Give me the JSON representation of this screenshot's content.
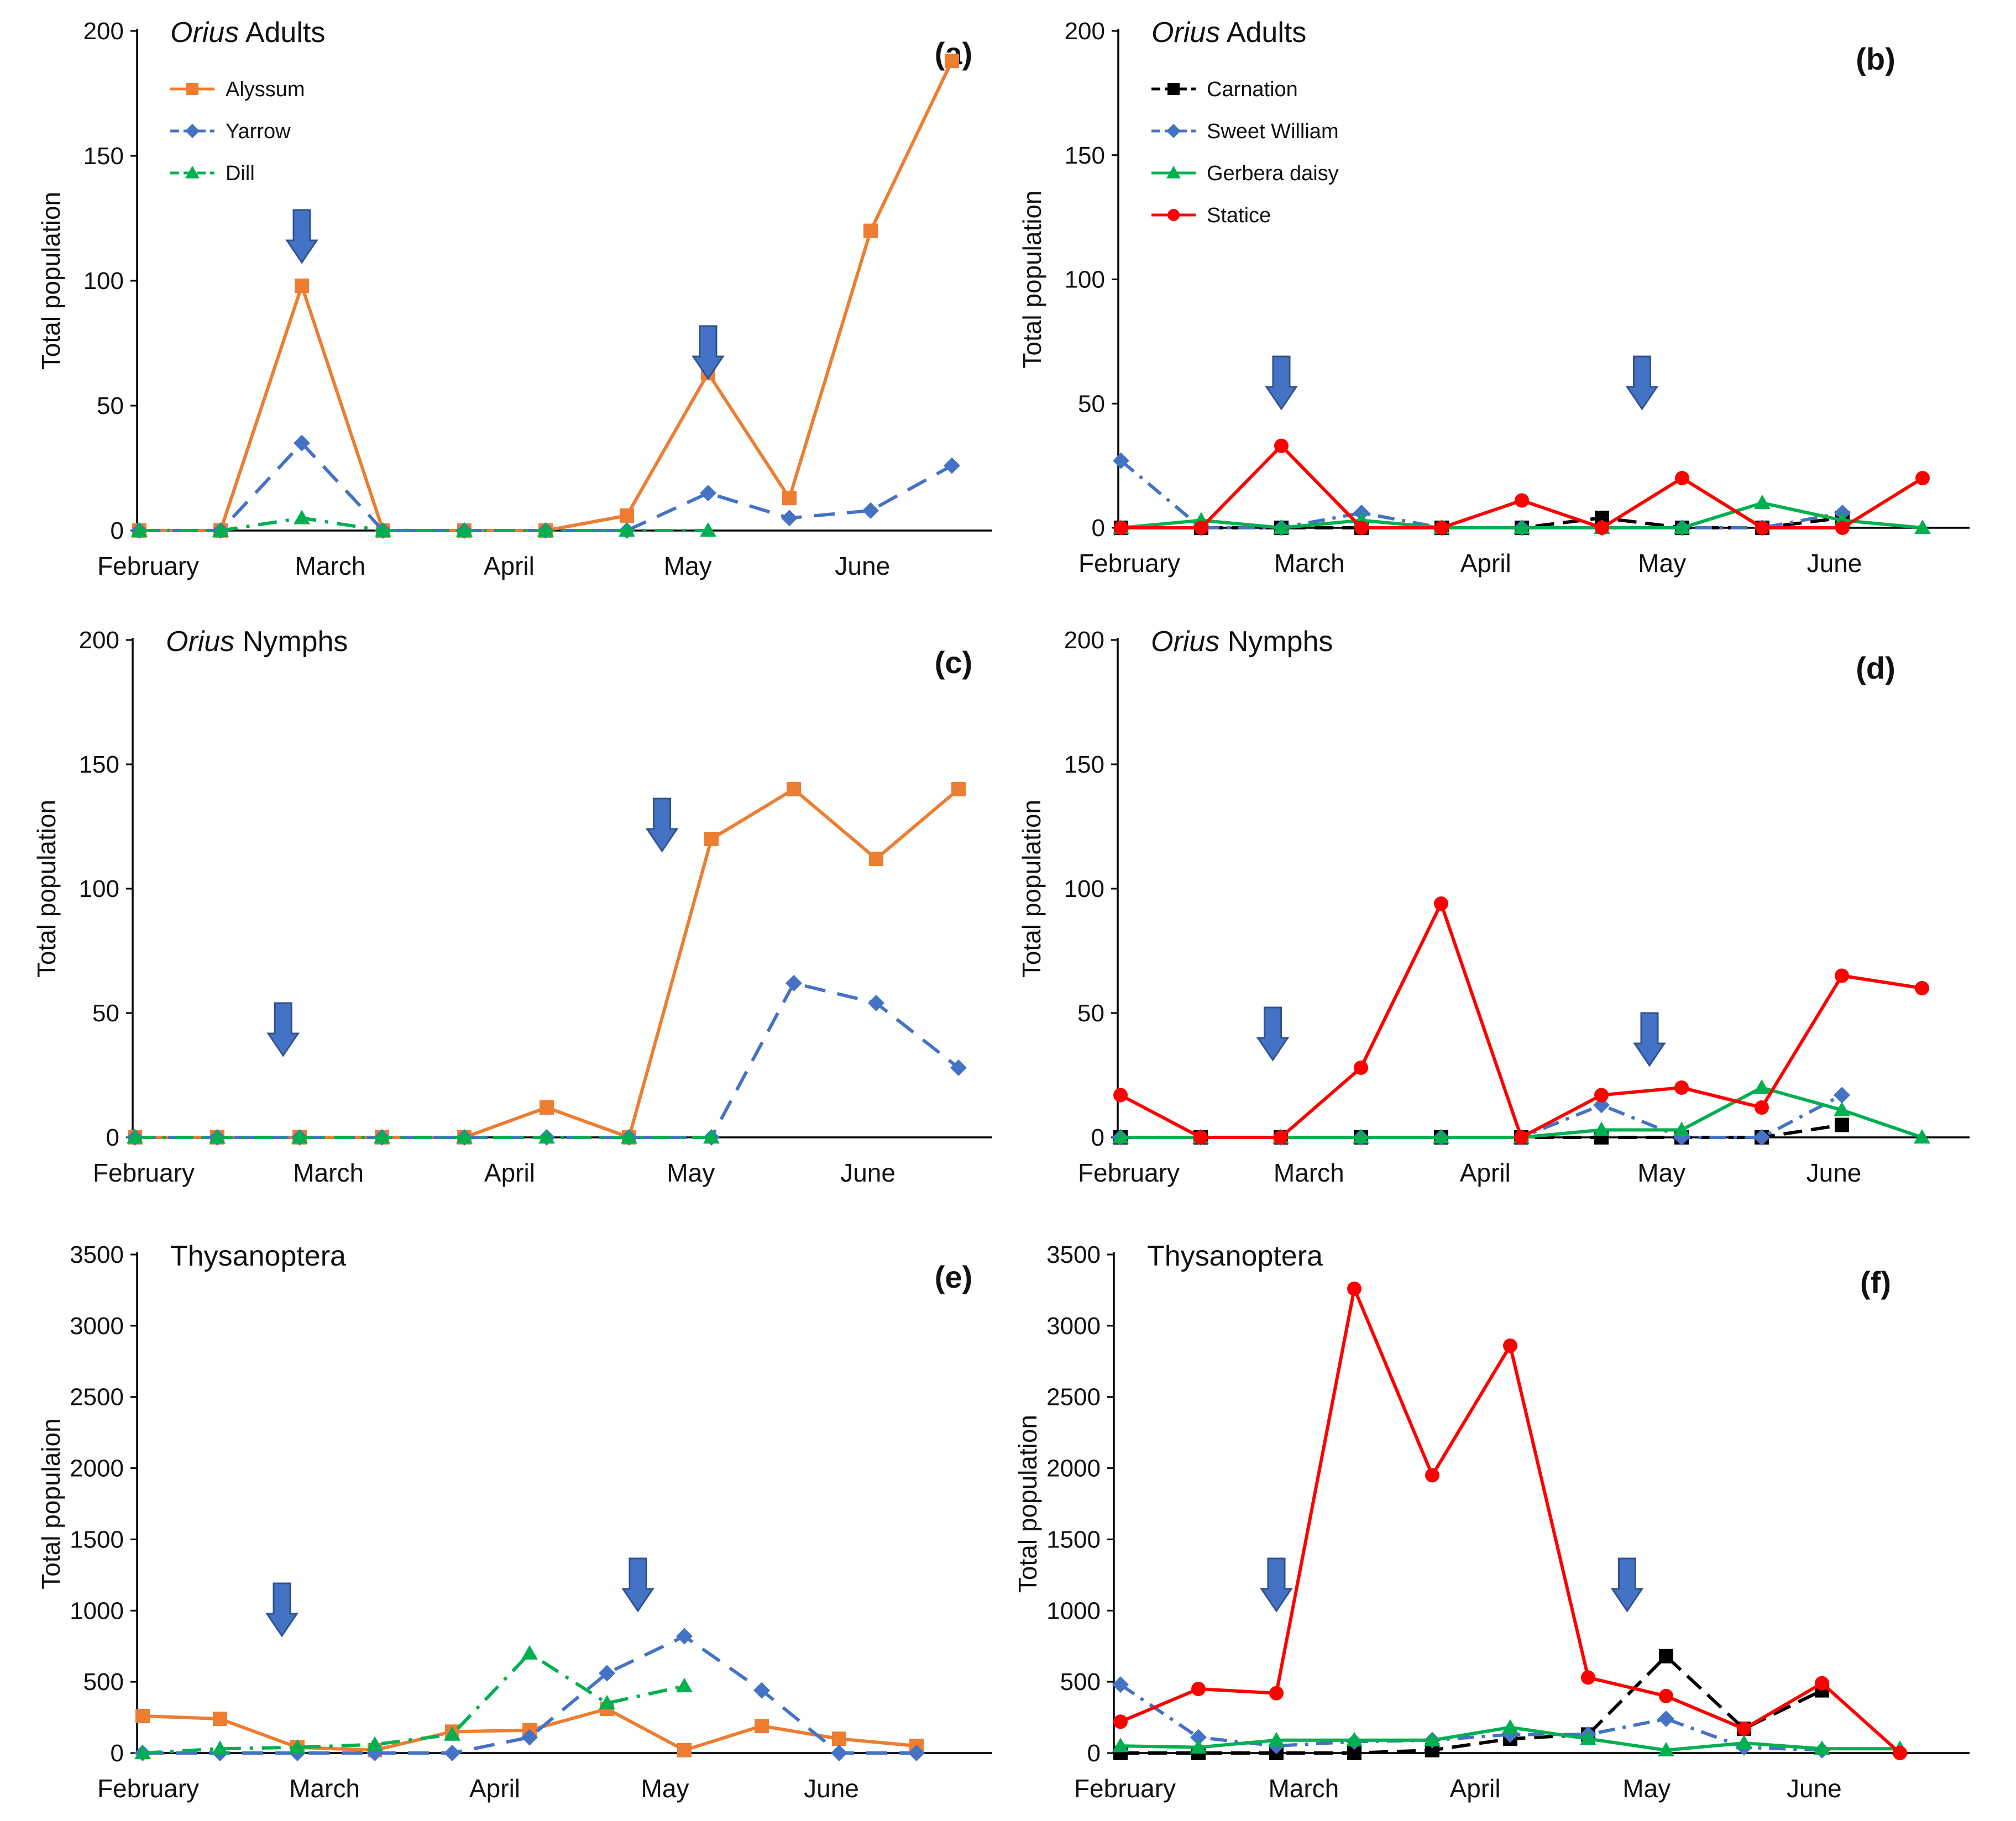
{
  "figure": {
    "marker_shapes": {
      "Alyssum": "square",
      "Yarrow": "diamond",
      "Dill": "triangle",
      "Carnation": "square",
      "Sweet William": "diamond",
      "Gerbera daisy": "triangle",
      "Statice": "circle"
    },
    "colors": {
      "Alyssum": "#ED7D31",
      "Yarrow": "#4472C4",
      "Dill": "#00B050",
      "Carnation": "#000000",
      "Sweet William": "#4472C4",
      "Gerbera daisy": "#00B050",
      "Statice": "#FF0000",
      "arrow": "#4472C4"
    },
    "arrow_icon": "down-arrow-icon"
  },
  "chart_data": [
    {
      "id": "a",
      "panel_label": "(a)",
      "type": "line",
      "title_italic": "Orius",
      "title_rest": " Adults",
      "ylabel": "Total population",
      "ylim": [
        0,
        200
      ],
      "yticks": [
        0,
        50,
        100,
        150,
        200
      ],
      "months": [
        "February",
        "March",
        "April",
        "May",
        "June"
      ],
      "arrows_at": [
        2,
        7
      ],
      "legend": true,
      "series": [
        {
          "name": "Alyssum",
          "x": [
            0,
            1,
            2,
            3,
            4,
            5,
            6,
            7,
            8,
            9,
            10
          ],
          "values": [
            0,
            0,
            98,
            0,
            0,
            0,
            6,
            63,
            13,
            120,
            188
          ]
        },
        {
          "name": "Yarrow",
          "x": [
            0,
            1,
            2,
            3,
            4,
            5,
            6,
            7,
            8,
            9,
            10
          ],
          "values": [
            0,
            0,
            35,
            0,
            0,
            0,
            0,
            15,
            5,
            8,
            26
          ]
        },
        {
          "name": "Dill",
          "x": [
            0,
            1,
            2,
            3,
            4,
            5,
            6,
            7
          ],
          "values": [
            0,
            0,
            5,
            0,
            0,
            0,
            0,
            0
          ]
        }
      ]
    },
    {
      "id": "b",
      "panel_label": "(b)",
      "type": "line",
      "title_italic": "Orius",
      "title_rest": " Adults",
      "ylabel": "Total population",
      "ylim": [
        0,
        200
      ],
      "yticks": [
        0,
        50,
        100,
        150,
        200
      ],
      "months": [
        "February",
        "March",
        "April",
        "May",
        "June"
      ],
      "arrows_at": [
        2,
        6.5
      ],
      "legend": true,
      "series": [
        {
          "name": "Carnation",
          "x": [
            0,
            1,
            2,
            3,
            4,
            5,
            6,
            7,
            8,
            9
          ],
          "values": [
            0,
            0,
            0,
            0,
            0,
            0,
            4,
            0,
            0,
            4
          ]
        },
        {
          "name": "Sweet William",
          "x": [
            0,
            1,
            2,
            3,
            4,
            5,
            6,
            7,
            8,
            9
          ],
          "values": [
            27,
            0,
            0,
            6,
            0,
            0,
            0,
            0,
            0,
            6
          ]
        },
        {
          "name": "Gerbera daisy",
          "x": [
            0,
            1,
            2,
            3,
            4,
            5,
            6,
            7,
            8,
            9,
            10
          ],
          "values": [
            0,
            3,
            0,
            3,
            0,
            0,
            0,
            0,
            10,
            3,
            0
          ]
        },
        {
          "name": "Statice",
          "x": [
            0,
            1,
            2,
            3,
            4,
            5,
            6,
            7,
            8,
            9,
            10
          ],
          "values": [
            0,
            0,
            33,
            0,
            0,
            11,
            0,
            20,
            0,
            0,
            20
          ]
        }
      ]
    },
    {
      "id": "c",
      "panel_label": "(c)",
      "type": "line",
      "title_italic": "Orius",
      "title_rest": " Nymphs",
      "ylabel": "Total population",
      "ylim": [
        0,
        200
      ],
      "yticks": [
        0,
        50,
        100,
        150,
        200
      ],
      "months": [
        "February",
        "March",
        "April",
        "May",
        "June"
      ],
      "arrows_at": [
        1.8,
        6.4
      ],
      "legend": false,
      "series": [
        {
          "name": "Alyssum",
          "x": [
            0,
            1,
            2,
            3,
            4,
            5,
            6,
            7,
            8,
            9,
            10
          ],
          "values": [
            0,
            0,
            0,
            0,
            0,
            12,
            0,
            120,
            140,
            112,
            140
          ]
        },
        {
          "name": "Yarrow",
          "x": [
            0,
            1,
            2,
            3,
            4,
            5,
            6,
            7,
            8,
            9,
            10
          ],
          "values": [
            0,
            0,
            0,
            0,
            0,
            0,
            0,
            0,
            62,
            54,
            28
          ]
        },
        {
          "name": "Dill",
          "x": [
            0,
            1,
            2,
            3,
            4,
            5,
            6,
            7
          ],
          "values": [
            0,
            0,
            0,
            0,
            0,
            0,
            0,
            0
          ]
        }
      ]
    },
    {
      "id": "d",
      "panel_label": "(d)",
      "type": "line",
      "title_italic": "Orius",
      "title_rest": " Nymphs",
      "ylabel": "Total population",
      "ylim": [
        0,
        200
      ],
      "yticks": [
        0,
        50,
        100,
        150,
        200
      ],
      "months": [
        "February",
        "March",
        "April",
        "May",
        "June"
      ],
      "arrows_at": [
        1.9,
        6.6
      ],
      "legend": false,
      "series": [
        {
          "name": "Carnation",
          "x": [
            0,
            1,
            2,
            3,
            4,
            5,
            6,
            7,
            8,
            9
          ],
          "values": [
            0,
            0,
            0,
            0,
            0,
            0,
            0,
            0,
            0,
            5
          ]
        },
        {
          "name": "Sweet William",
          "x": [
            0,
            1,
            2,
            3,
            4,
            5,
            6,
            7,
            8,
            9
          ],
          "values": [
            0,
            0,
            0,
            0,
            0,
            0,
            13,
            0,
            0,
            17
          ]
        },
        {
          "name": "Gerbera daisy",
          "x": [
            0,
            1,
            2,
            3,
            4,
            5,
            6,
            7,
            8,
            9,
            10
          ],
          "values": [
            0,
            0,
            0,
            0,
            0,
            0,
            3,
            3,
            20,
            11,
            0
          ]
        },
        {
          "name": "Statice",
          "x": [
            0,
            1,
            2,
            3,
            4,
            5,
            6,
            7,
            8,
            9,
            10
          ],
          "values": [
            17,
            0,
            0,
            28,
            94,
            0,
            17,
            20,
            12,
            65,
            60
          ]
        }
      ]
    },
    {
      "id": "e",
      "panel_label": "(e)",
      "type": "line",
      "title_italic": "",
      "title_rest": "Thysanoptera",
      "ylabel": "Total populaion",
      "ylim": [
        0,
        3500
      ],
      "yticks": [
        0,
        500,
        1000,
        1500,
        2000,
        2500,
        3000,
        3500
      ],
      "months": [
        "February",
        "March",
        "April",
        "May",
        "June"
      ],
      "arrows_at": [
        1.8,
        6.4
      ],
      "legend": false,
      "series": [
        {
          "name": "Alyssum",
          "x": [
            0,
            1,
            2,
            3,
            4,
            5,
            6,
            7,
            8,
            9,
            10
          ],
          "values": [
            260,
            240,
            40,
            20,
            150,
            160,
            310,
            20,
            190,
            100,
            50
          ]
        },
        {
          "name": "Yarrow",
          "x": [
            0,
            1,
            2,
            3,
            4,
            5,
            6,
            7,
            8,
            9,
            10
          ],
          "values": [
            0,
            0,
            0,
            0,
            0,
            110,
            560,
            820,
            440,
            0,
            0
          ]
        },
        {
          "name": "Dill",
          "x": [
            0,
            1,
            2,
            3,
            4,
            5,
            6,
            7
          ],
          "values": [
            0,
            30,
            40,
            60,
            130,
            700,
            350,
            470
          ]
        }
      ]
    },
    {
      "id": "f",
      "panel_label": "(f)",
      "type": "line",
      "title_italic": "",
      "title_rest": "Thysanoptera",
      "ylabel": "Total population",
      "ylim": [
        0,
        3500
      ],
      "yticks": [
        0,
        500,
        1000,
        1500,
        2000,
        2500,
        3000,
        3500
      ],
      "months": [
        "February",
        "March",
        "April",
        "May",
        "June"
      ],
      "arrows_at": [
        2,
        6.5
      ],
      "legend": false,
      "series": [
        {
          "name": "Carnation",
          "x": [
            0,
            1,
            2,
            3,
            4,
            5,
            6,
            7,
            8,
            9
          ],
          "values": [
            0,
            0,
            0,
            0,
            20,
            100,
            130,
            680,
            170,
            440
          ]
        },
        {
          "name": "Sweet William",
          "x": [
            0,
            1,
            2,
            3,
            4,
            5,
            6,
            7,
            8,
            9
          ],
          "values": [
            480,
            110,
            50,
            80,
            90,
            130,
            130,
            240,
            40,
            20
          ]
        },
        {
          "name": "Gerbera daisy",
          "x": [
            0,
            1,
            2,
            3,
            4,
            5,
            6,
            7,
            8,
            9,
            10
          ],
          "values": [
            50,
            40,
            90,
            90,
            90,
            180,
            100,
            20,
            70,
            30,
            30
          ]
        },
        {
          "name": "Statice",
          "x": [
            0,
            1,
            2,
            3,
            4,
            5,
            6,
            7,
            8,
            9,
            10
          ],
          "values": [
            220,
            450,
            420,
            3260,
            1950,
            2860,
            530,
            400,
            170,
            490,
            0
          ]
        }
      ]
    }
  ]
}
